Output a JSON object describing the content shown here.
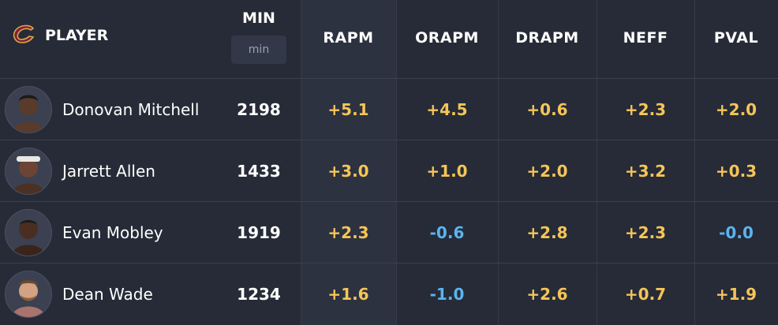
{
  "header": {
    "player_label": "PLAYER",
    "team_logo_icon": "cavaliers-c-logo-icon",
    "min_label": "MIN",
    "min_sub_label": "min",
    "columns": [
      "RAPM",
      "ORAPM",
      "DRAPM",
      "NEFF",
      "PVAL"
    ]
  },
  "colors": {
    "positive": "#f6c558",
    "negative": "#5bb4ee",
    "background": "#262b37"
  },
  "rows": [
    {
      "name": "Donovan Mitchell",
      "min": "2198",
      "rapm": "+5.1",
      "orapm": "+4.5",
      "drapm": "+0.6",
      "neff": "+2.3",
      "pval": "+2.0"
    },
    {
      "name": "Jarrett Allen",
      "min": "1433",
      "rapm": "+3.0",
      "orapm": "+1.0",
      "drapm": "+2.0",
      "neff": "+3.2",
      "pval": "+0.3"
    },
    {
      "name": "Evan Mobley",
      "min": "1919",
      "rapm": "+2.3",
      "orapm": "-0.6",
      "drapm": "+2.8",
      "neff": "+2.3",
      "pval": "-0.0"
    },
    {
      "name": "Dean Wade",
      "min": "1234",
      "rapm": "+1.6",
      "orapm": "-1.0",
      "drapm": "+2.6",
      "neff": "+0.7",
      "pval": "+1.9"
    }
  ]
}
